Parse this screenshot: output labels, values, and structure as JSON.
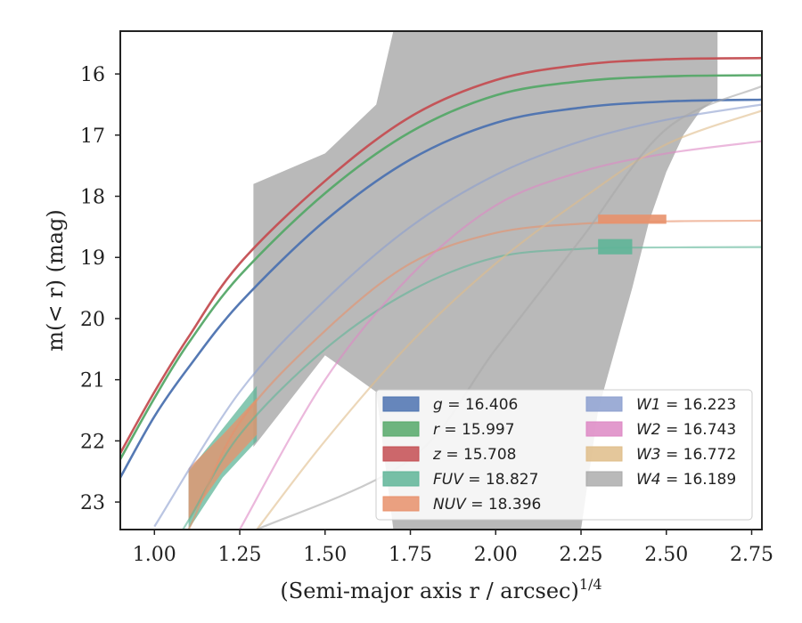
{
  "chart_data": {
    "type": "line",
    "xlabel": "(Semi-major axis r / arcsec)",
    "xlabel_sup": "1/4",
    "ylabel": "m(< r) (mag)",
    "xlim": [
      0.9,
      2.78
    ],
    "ylim": [
      23.45,
      15.3
    ],
    "y_inverted": true,
    "x_ticks": [
      {
        "value": 1.0,
        "label": "1.00"
      },
      {
        "value": 1.25,
        "label": "1.25"
      },
      {
        "value": 1.5,
        "label": "1.50"
      },
      {
        "value": 1.75,
        "label": "1.75"
      },
      {
        "value": 2.0,
        "label": "2.00"
      },
      {
        "value": 2.25,
        "label": "2.25"
      },
      {
        "value": 2.5,
        "label": "2.50"
      },
      {
        "value": 2.75,
        "label": "2.75"
      }
    ],
    "y_ticks": [
      {
        "value": 16,
        "label": "16"
      },
      {
        "value": 17,
        "label": "17"
      },
      {
        "value": 18,
        "label": "18"
      },
      {
        "value": 19,
        "label": "19"
      },
      {
        "value": 20,
        "label": "20"
      },
      {
        "value": 21,
        "label": "21"
      },
      {
        "value": 22,
        "label": "22"
      },
      {
        "value": 23,
        "label": "23"
      }
    ],
    "grid": false,
    "legend_position": "lower-right",
    "series": [
      {
        "id": "g",
        "name": "g",
        "total": "16.406",
        "color": "#4c72b0",
        "x": [
          0.9,
          1.0,
          1.1,
          1.25,
          1.5,
          1.75,
          2.0,
          2.25,
          2.5,
          2.78
        ],
        "y": [
          22.6,
          21.6,
          20.8,
          19.75,
          18.4,
          17.4,
          16.8,
          16.55,
          16.45,
          16.42
        ]
      },
      {
        "id": "r",
        "name": "r",
        "total": "15.997",
        "color": "#55a868",
        "x": [
          0.9,
          1.0,
          1.1,
          1.25,
          1.5,
          1.75,
          2.0,
          2.25,
          2.5,
          2.78
        ],
        "y": [
          22.3,
          21.3,
          20.4,
          19.3,
          17.95,
          16.95,
          16.35,
          16.12,
          16.04,
          16.02
        ]
      },
      {
        "id": "z",
        "name": "z",
        "total": "15.708",
        "color": "#c44e52",
        "x": [
          0.9,
          1.0,
          1.1,
          1.25,
          1.5,
          1.75,
          2.0,
          2.25,
          2.5,
          2.78
        ],
        "y": [
          22.2,
          21.2,
          20.3,
          19.1,
          17.75,
          16.7,
          16.1,
          15.85,
          15.76,
          15.74
        ]
      },
      {
        "id": "FUV",
        "name": "FUV",
        "total": "18.827",
        "color": "#5fb598",
        "x": [
          1.0,
          1.1,
          1.25,
          1.5,
          1.75,
          2.0,
          2.25,
          2.4,
          2.78
        ],
        "y": [
          24.2,
          23.3,
          21.9,
          20.5,
          19.55,
          19.0,
          18.86,
          18.84,
          18.83
        ],
        "band_x": [
          1.1,
          1.2,
          1.3
        ],
        "band_lower": [
          22.5,
          21.8,
          21.1
        ],
        "band_upper": [
          23.45,
          22.6,
          22.0
        ],
        "marker": {
          "x1": 2.3,
          "x2": 2.4,
          "y1": 18.7,
          "y2": 18.95
        }
      },
      {
        "id": "NUV",
        "name": "NUV",
        "total": "18.396",
        "color": "#e8916b",
        "x": [
          1.0,
          1.1,
          1.25,
          1.5,
          1.75,
          2.0,
          2.25,
          2.5,
          2.78
        ],
        "y": [
          24.4,
          23.45,
          21.7,
          20.2,
          19.1,
          18.6,
          18.45,
          18.41,
          18.4
        ],
        "band_x": [
          1.1,
          1.2,
          1.3
        ],
        "band_lower": [
          22.45,
          21.9,
          21.3
        ],
        "band_upper": [
          23.3,
          22.5,
          21.9
        ],
        "marker": {
          "x1": 2.3,
          "x2": 2.5,
          "y1": 18.3,
          "y2": 18.45
        }
      },
      {
        "id": "W1",
        "name": "W1",
        "total": "16.223",
        "color": "#8c9fcf",
        "x": [
          1.0,
          1.25,
          1.5,
          1.75,
          2.0,
          2.25,
          2.5,
          2.78
        ],
        "y": [
          23.4,
          21.2,
          19.7,
          18.5,
          17.65,
          17.1,
          16.75,
          16.5
        ]
      },
      {
        "id": "W2",
        "name": "W2",
        "total": "16.743",
        "color": "#dd88c4",
        "x": [
          1.25,
          1.5,
          1.75,
          2.0,
          2.25,
          2.5,
          2.78
        ],
        "y": [
          23.45,
          21.0,
          19.3,
          18.15,
          17.6,
          17.3,
          17.1
        ]
      },
      {
        "id": "W3",
        "name": "W3",
        "total": "16.772",
        "color": "#dfbd8a",
        "x": [
          1.3,
          1.5,
          1.75,
          2.0,
          2.25,
          2.5,
          2.78
        ],
        "y": [
          23.45,
          22.0,
          20.4,
          19.1,
          18.05,
          17.15,
          16.6
        ]
      },
      {
        "id": "W4",
        "name": "W4",
        "total": "16.189",
        "color": "#a9a9a9",
        "x": [
          1.3,
          1.75,
          2.0,
          2.25,
          2.5,
          2.78
        ],
        "y": [
          23.45,
          22.3,
          20.5,
          18.7,
          16.9,
          16.2
        ],
        "band_x": [
          1.29,
          1.5,
          1.65,
          1.7,
          1.85,
          2.0,
          2.15,
          2.25,
          2.3,
          2.4,
          2.45,
          2.5,
          2.55,
          2.6,
          2.65
        ],
        "band_lower": [
          17.8,
          17.3,
          16.5,
          15.3,
          15.3,
          15.3,
          15.3,
          15.3,
          15.3,
          15.3,
          15.3,
          15.3,
          15.3,
          15.3,
          15.3
        ],
        "band_upper": [
          22.1,
          20.6,
          21.2,
          23.45,
          23.45,
          23.45,
          23.45,
          23.45,
          21.5,
          19.5,
          18.4,
          17.6,
          17.0,
          16.6,
          16.4
        ]
      }
    ]
  }
}
